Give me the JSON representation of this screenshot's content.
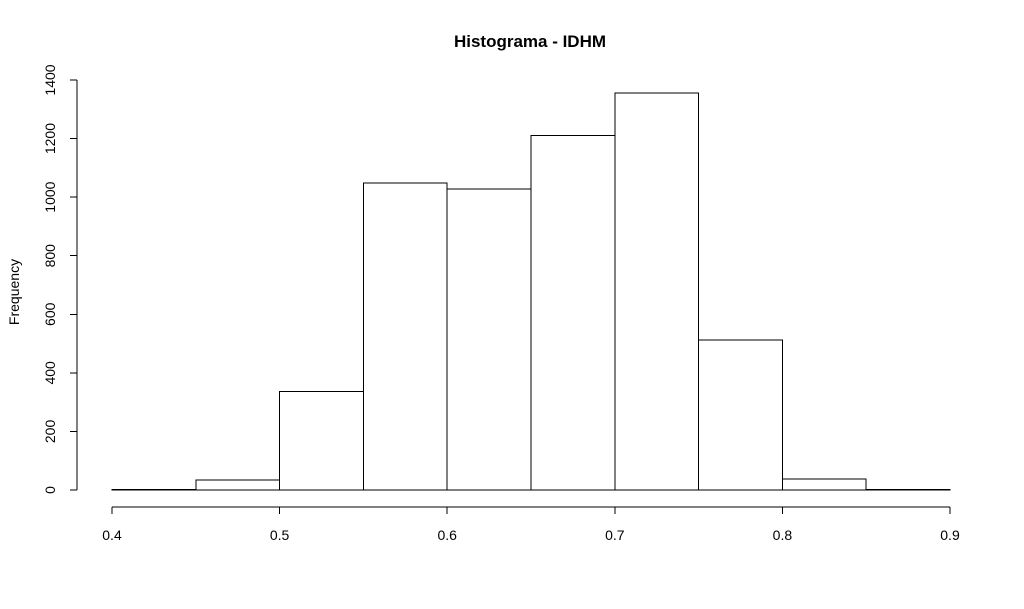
{
  "chart_data": {
    "type": "bar",
    "title": "Histograma - IDHM",
    "xlabel": "",
    "ylabel": "Frequency",
    "bins": [
      {
        "from": 0.4,
        "to": 0.45,
        "count": 2
      },
      {
        "from": 0.45,
        "to": 0.5,
        "count": 34
      },
      {
        "from": 0.5,
        "to": 0.55,
        "count": 337
      },
      {
        "from": 0.55,
        "to": 0.6,
        "count": 1049
      },
      {
        "from": 0.6,
        "to": 0.65,
        "count": 1027
      },
      {
        "from": 0.65,
        "to": 0.7,
        "count": 1211
      },
      {
        "from": 0.7,
        "to": 0.75,
        "count": 1355
      },
      {
        "from": 0.75,
        "to": 0.8,
        "count": 512
      },
      {
        "from": 0.8,
        "to": 0.85,
        "count": 37
      },
      {
        "from": 0.85,
        "to": 0.9,
        "count": 2
      }
    ],
    "xlim": [
      0.4,
      0.9
    ],
    "ylim": [
      0,
      1400
    ],
    "x_ticks": [
      "0.4",
      "0.5",
      "0.6",
      "0.7",
      "0.8",
      "0.9"
    ],
    "y_ticks": [
      "0",
      "200",
      "400",
      "600",
      "800",
      "1000",
      "1200",
      "1400"
    ],
    "grid": false,
    "bar_fill": "#ffffff",
    "bar_stroke": "#000000"
  }
}
